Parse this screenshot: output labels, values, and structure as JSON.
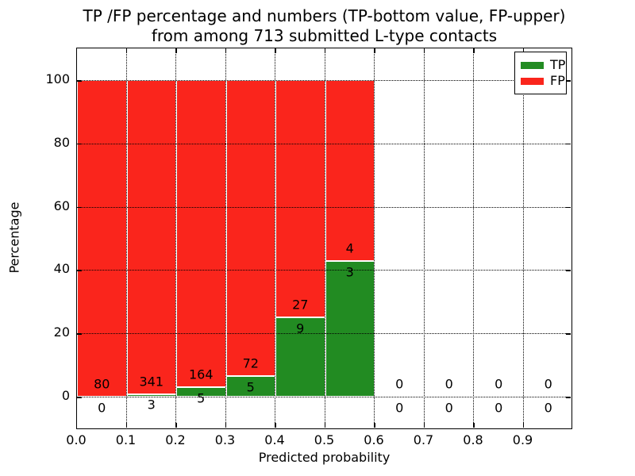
{
  "title": {
    "line1": "TP /FP percentage and numbers (TP-bottom value, FP-upper)",
    "line2": "from among 713 submitted L-type contacts"
  },
  "chart_data": {
    "type": "bar",
    "stacked": true,
    "title": "TP /FP percentage and numbers (TP-bottom value, FP-upper)\nfrom among 713 submitted L-type contacts",
    "xlabel": "Predicted probability",
    "ylabel": "Percentage",
    "total_submitted_contacts": 713,
    "xlim": [
      0.0,
      1.0
    ],
    "ylim": [
      -10.5,
      110.0
    ],
    "grid": "dotted",
    "legend_position": "upper right",
    "xticks": [
      "0.0",
      "0.1",
      "0.2",
      "0.3",
      "0.4",
      "0.5",
      "0.6",
      "0.7",
      "0.8",
      "0.9"
    ],
    "yticks": [
      "0",
      "20",
      "40",
      "60",
      "80",
      "100"
    ],
    "ytick_values": [
      0,
      20,
      40,
      60,
      80,
      100
    ],
    "bin_width": 0.1,
    "bins": [
      {
        "x0": 0.0,
        "x1": 0.1,
        "tp_count": 0,
        "fp_count": 80,
        "tp_pct": 0.0,
        "fp_pct": 100.0
      },
      {
        "x0": 0.1,
        "x1": 0.2,
        "tp_count": 3,
        "fp_count": 341,
        "tp_pct": 0.87,
        "fp_pct": 99.13
      },
      {
        "x0": 0.2,
        "x1": 0.3,
        "tp_count": 5,
        "fp_count": 164,
        "tp_pct": 2.96,
        "fp_pct": 97.04
      },
      {
        "x0": 0.3,
        "x1": 0.4,
        "tp_count": 5,
        "fp_count": 72,
        "tp_pct": 6.49,
        "fp_pct": 93.51
      },
      {
        "x0": 0.4,
        "x1": 0.5,
        "tp_count": 9,
        "fp_count": 27,
        "tp_pct": 25.0,
        "fp_pct": 75.0
      },
      {
        "x0": 0.5,
        "x1": 0.6,
        "tp_count": 3,
        "fp_count": 4,
        "tp_pct": 42.86,
        "fp_pct": 57.14
      },
      {
        "x0": 0.6,
        "x1": 0.7,
        "tp_count": 0,
        "fp_count": 0,
        "tp_pct": 0.0,
        "fp_pct": 0.0
      },
      {
        "x0": 0.7,
        "x1": 0.8,
        "tp_count": 0,
        "fp_count": 0,
        "tp_pct": 0.0,
        "fp_pct": 0.0
      },
      {
        "x0": 0.8,
        "x1": 0.9,
        "tp_count": 0,
        "fp_count": 0,
        "tp_pct": 0.0,
        "fp_pct": 0.0
      },
      {
        "x0": 0.9,
        "x1": 1.0,
        "tp_count": 0,
        "fp_count": 0,
        "tp_pct": 0.0,
        "fp_pct": 0.0
      }
    ],
    "legend": [
      {
        "label": "TP",
        "color": "#228b22"
      },
      {
        "label": "FP",
        "color": "#fa251c"
      }
    ],
    "colors": {
      "tp": "#228b22",
      "fp": "#fa251c",
      "grid": "#000000",
      "bar_edge": "#ffffff"
    }
  }
}
